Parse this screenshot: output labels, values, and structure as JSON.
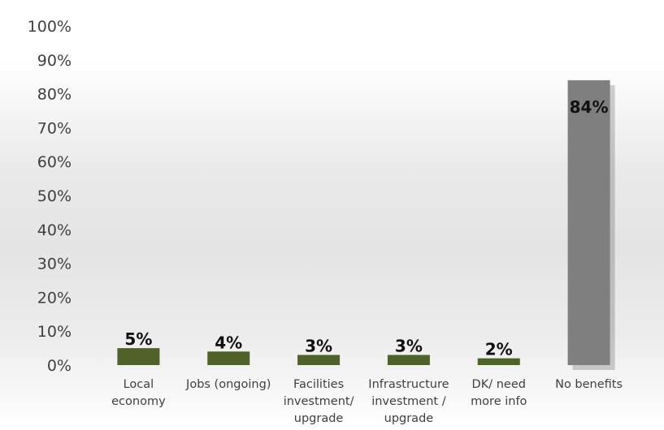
{
  "chart_data": {
    "type": "bar",
    "title": "",
    "xlabel": "",
    "ylabel": "",
    "categories": [
      [
        "Local",
        "economy"
      ],
      [
        "Jobs (ongoing)"
      ],
      [
        "Facilities",
        "investment/",
        "upgrade"
      ],
      [
        "Infrastructure",
        "investment /",
        "upgrade"
      ],
      [
        "DK/ need",
        "more info"
      ],
      [
        "No benefits"
      ]
    ],
    "values": [
      5,
      4,
      3,
      3,
      2,
      84
    ],
    "data_labels": [
      "5%",
      "4%",
      "3%",
      "3%",
      "2%",
      "84%"
    ],
    "bar_colors": [
      "#4f6228",
      "#4f6228",
      "#4f6228",
      "#4f6228",
      "#4f6228",
      "#7f7f7f"
    ],
    "ylim": [
      0,
      100
    ],
    "yticks": [
      0,
      10,
      20,
      30,
      40,
      50,
      60,
      70,
      80,
      90,
      100
    ],
    "ytick_labels": [
      "0%",
      "10%",
      "20%",
      "30%",
      "40%",
      "50%",
      "60%",
      "70%",
      "80%",
      "90%",
      "100%"
    ],
    "grid": false,
    "legend": "none",
    "label_color_dark": "#111111",
    "axis_text_color": "#404040"
  }
}
